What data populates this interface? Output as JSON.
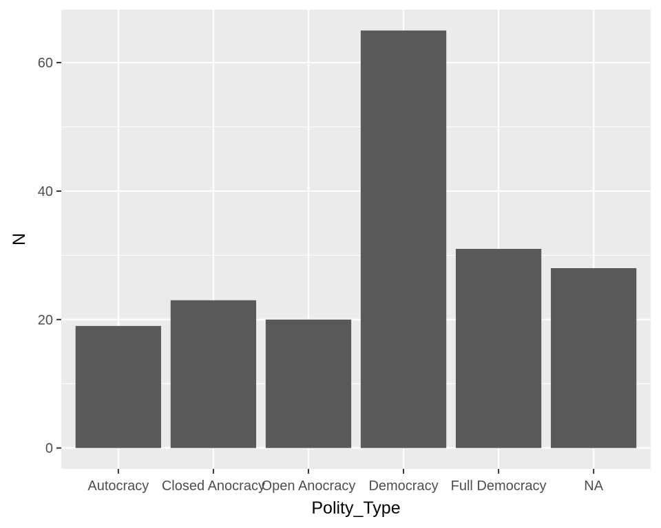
{
  "chart_data": {
    "type": "bar",
    "categories": [
      "Autocracy",
      "Closed Anocracy",
      "Open Anocracy",
      "Democracy",
      "Full Democracy",
      "NA"
    ],
    "values": [
      19,
      23,
      20,
      65,
      31,
      28
    ],
    "xlabel": "Polity_Type",
    "ylabel": "N",
    "ylim": [
      -3.25,
      68.25
    ],
    "yticks": [
      0,
      20,
      40,
      60
    ],
    "grid": true,
    "legend": "none",
    "colors": {
      "panel": "#ebebeb",
      "grid": "#ffffff",
      "bar": "#595959",
      "tick": "#333333",
      "text": "#4d4d4d"
    }
  }
}
